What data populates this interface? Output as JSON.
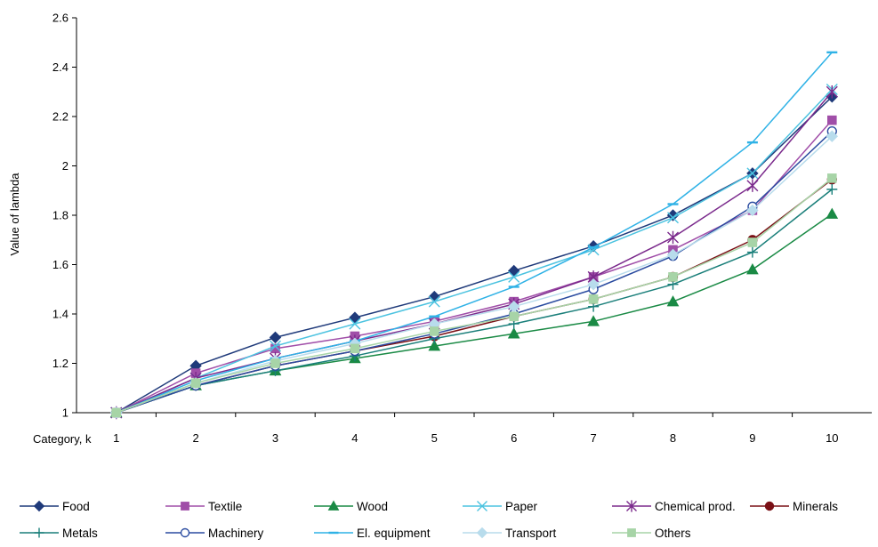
{
  "chart_data": {
    "type": "line",
    "xlabel": "Category, k",
    "ylabel": "Value of lambda",
    "x": [
      1,
      2,
      3,
      4,
      5,
      6,
      7,
      8,
      9,
      10
    ],
    "ylim": [
      1,
      2.6
    ],
    "yticks": [
      1,
      1.2,
      1.4,
      1.6,
      1.8,
      2,
      2.2,
      2.4,
      2.6
    ],
    "ytick_labels": [
      "1",
      "1.2",
      "1.4",
      "1.6",
      "1.8",
      "2",
      "2.2",
      "2.4",
      "2.6"
    ],
    "grid": false,
    "legend_position": "bottom",
    "series": [
      {
        "name": "Food",
        "color": "#1f3a7a",
        "marker": "diamond",
        "filled": true,
        "values": [
          1.0,
          1.19,
          1.305,
          1.385,
          1.47,
          1.575,
          1.675,
          1.8,
          1.97,
          2.28
        ]
      },
      {
        "name": "Textile",
        "color": "#a04ea8",
        "marker": "square",
        "filled": true,
        "values": [
          1.0,
          1.16,
          1.26,
          1.31,
          1.37,
          1.45,
          1.55,
          1.66,
          1.82,
          2.185
        ]
      },
      {
        "name": "Wood",
        "color": "#1a8a45",
        "marker": "triangle",
        "filled": true,
        "values": [
          1.0,
          1.11,
          1.17,
          1.22,
          1.27,
          1.32,
          1.37,
          1.45,
          1.58,
          1.805
        ]
      },
      {
        "name": "Paper",
        "color": "#4cc3e0",
        "marker": "x",
        "filled": false,
        "values": [
          1.0,
          1.14,
          1.27,
          1.36,
          1.45,
          1.55,
          1.66,
          1.79,
          1.97,
          2.31
        ]
      },
      {
        "name": "Chemical prod.",
        "color": "#7b2a8c",
        "marker": "star",
        "filled": false,
        "values": [
          1.0,
          1.14,
          1.22,
          1.29,
          1.36,
          1.44,
          1.55,
          1.71,
          1.92,
          2.3
        ]
      },
      {
        "name": "Minerals",
        "color": "#7a1016",
        "marker": "circle",
        "filled": true,
        "values": [
          1.0,
          1.11,
          1.19,
          1.25,
          1.31,
          1.39,
          1.46,
          1.55,
          1.7,
          1.945
        ]
      },
      {
        "name": "Metals",
        "color": "#1a7f7a",
        "marker": "plus",
        "filled": false,
        "values": [
          1.0,
          1.11,
          1.17,
          1.23,
          1.3,
          1.36,
          1.43,
          1.52,
          1.65,
          1.905
        ]
      },
      {
        "name": "Machinery",
        "color": "#2b4ca0",
        "marker": "circle",
        "filled": false,
        "values": [
          1.0,
          1.11,
          1.19,
          1.25,
          1.32,
          1.4,
          1.5,
          1.635,
          1.835,
          2.14
        ]
      },
      {
        "name": "El. equipment",
        "color": "#2fb2e6",
        "marker": "dash",
        "filled": false,
        "values": [
          1.0,
          1.13,
          1.22,
          1.29,
          1.39,
          1.51,
          1.67,
          1.845,
          2.095,
          2.46
        ]
      },
      {
        "name": "Transport",
        "color": "#b8dcec",
        "marker": "diamond",
        "filled": true,
        "values": [
          1.0,
          1.12,
          1.21,
          1.28,
          1.36,
          1.43,
          1.52,
          1.64,
          1.82,
          2.12
        ]
      },
      {
        "name": "Others",
        "color": "#a7d4a7",
        "marker": "square",
        "filled": true,
        "values": [
          1.0,
          1.12,
          1.2,
          1.26,
          1.33,
          1.39,
          1.46,
          1.55,
          1.69,
          1.95
        ]
      }
    ]
  }
}
